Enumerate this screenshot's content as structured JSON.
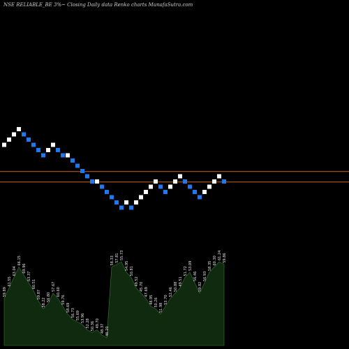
{
  "title": "NSE RELIABLE_BE 3%~  Closing Daily data  Renko  charts MunafaSutra.com",
  "colors": {
    "up": "#ffffff",
    "down": "#1e78f0",
    "line": "#c8641e",
    "volume_fill": "#0f2a0f",
    "volume_stroke": "#3a7a3a",
    "background": "#000000"
  },
  "chart_data": {
    "type": "renko",
    "price_axis": {
      "lines": [
        25.5,
        23.5
      ]
    },
    "bricks": [
      {
        "price": 31.0,
        "dir": "up"
      },
      {
        "price": 32.0,
        "dir": "up"
      },
      {
        "price": 33.0,
        "dir": "up"
      },
      {
        "price": 34.0,
        "dir": "up"
      },
      {
        "price": 33.0,
        "dir": "down"
      },
      {
        "price": 32.0,
        "dir": "down"
      },
      {
        "price": 31.0,
        "dir": "down"
      },
      {
        "price": 30.0,
        "dir": "down"
      },
      {
        "price": 29.0,
        "dir": "down"
      },
      {
        "price": 30.0,
        "dir": "up"
      },
      {
        "price": 31.0,
        "dir": "up"
      },
      {
        "price": 30.0,
        "dir": "down"
      },
      {
        "price": 29.0,
        "dir": "down"
      },
      {
        "price": 29.0,
        "dir": "up"
      },
      {
        "price": 28.0,
        "dir": "down"
      },
      {
        "price": 27.0,
        "dir": "down"
      },
      {
        "price": 26.0,
        "dir": "down"
      },
      {
        "price": 25.0,
        "dir": "down"
      },
      {
        "price": 24.0,
        "dir": "down"
      },
      {
        "price": 24.0,
        "dir": "up"
      },
      {
        "price": 23.0,
        "dir": "down"
      },
      {
        "price": 22.0,
        "dir": "down"
      },
      {
        "price": 21.0,
        "dir": "down"
      },
      {
        "price": 20.0,
        "dir": "down"
      },
      {
        "price": 19.0,
        "dir": "down"
      },
      {
        "price": 20.0,
        "dir": "up"
      },
      {
        "price": 19.0,
        "dir": "down"
      },
      {
        "price": 20.0,
        "dir": "up"
      },
      {
        "price": 21.0,
        "dir": "up"
      },
      {
        "price": 22.0,
        "dir": "up"
      },
      {
        "price": 23.0,
        "dir": "up"
      },
      {
        "price": 24.0,
        "dir": "up"
      },
      {
        "price": 23.0,
        "dir": "down"
      },
      {
        "price": 22.0,
        "dir": "down"
      },
      {
        "price": 23.0,
        "dir": "up"
      },
      {
        "price": 24.0,
        "dir": "up"
      },
      {
        "price": 25.0,
        "dir": "up"
      },
      {
        "price": 24.0,
        "dir": "down"
      },
      {
        "price": 23.0,
        "dir": "down"
      },
      {
        "price": 22.0,
        "dir": "down"
      },
      {
        "price": 21.0,
        "dir": "down"
      },
      {
        "price": 22.0,
        "dir": "up"
      },
      {
        "price": 23.0,
        "dir": "up"
      },
      {
        "price": 24.0,
        "dir": "up"
      },
      {
        "price": 25.0,
        "dir": "up"
      },
      {
        "price": 24.0,
        "dir": "down"
      }
    ],
    "volume": {
      "values": [
        18,
        22,
        26,
        30,
        27,
        24,
        21,
        17,
        14,
        16,
        20,
        18,
        15,
        12,
        10,
        9,
        8,
        6,
        5,
        6,
        4,
        3,
        30,
        31,
        32,
        28,
        26,
        22,
        20,
        18,
        15,
        14,
        12,
        15,
        18,
        20,
        22,
        26,
        28,
        24,
        20,
        24,
        28,
        30,
        32,
        31
      ],
      "labels": [
        "59.89",
        "61.55",
        "63.04",
        "66.15",
        "69.96",
        "63.37",
        "60.51",
        "59.87",
        "58.22",
        "56.80",
        "57.67",
        "60.60",
        "59.76",
        "58.69",
        "56.73",
        "55.69",
        "53.96",
        "52.28",
        "50.36",
        "49.70",
        "48.37",
        "46.20",
        "58.33",
        "57.81",
        "55.73",
        "54.95",
        "50.81",
        "49.52",
        "45.70",
        "47.69",
        "48.95",
        "50.26",
        "51.98",
        "53.70",
        "52.46",
        "50.88",
        "49.51",
        "51.72",
        "53.09",
        "56.46",
        "59.82",
        "56.93",
        "58.35",
        "60.30",
        "61.24",
        "59.86"
      ]
    }
  }
}
